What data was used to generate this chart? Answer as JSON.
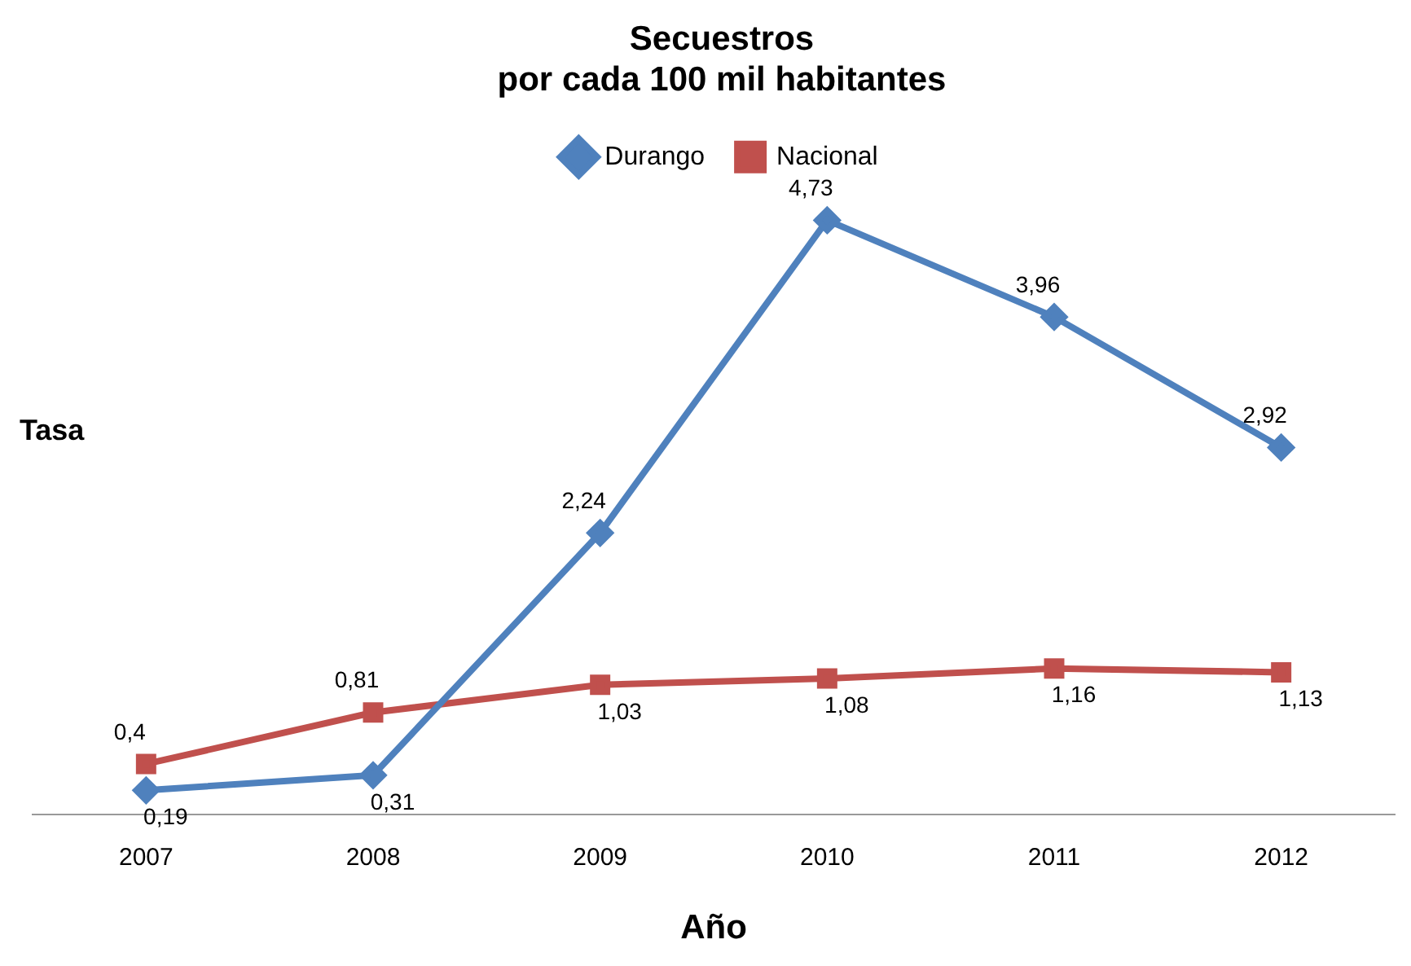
{
  "chart_data": {
    "type": "line",
    "title": "Secuestros\npor cada 100 mil habitantes",
    "xlabel": "Año",
    "ylabel": "Tasa",
    "categories": [
      "2007",
      "2008",
      "2009",
      "2010",
      "2011",
      "2012"
    ],
    "series": [
      {
        "name": "Durango",
        "color": "#4f81bd",
        "marker": "diamond",
        "values": [
          0.19,
          0.31,
          2.24,
          4.73,
          3.96,
          2.92
        ],
        "value_labels": [
          "0,19",
          "0,31",
          "2,24",
          "4,73",
          "3,96",
          "2,92"
        ]
      },
      {
        "name": "Nacional",
        "color": "#c0504d",
        "marker": "square",
        "values": [
          0.4,
          0.81,
          1.03,
          1.08,
          1.16,
          1.13
        ],
        "value_labels": [
          "0,4",
          "0,81",
          "1,03",
          "1,08",
          "1,16",
          "1,13"
        ]
      }
    ],
    "tick_labels": "x",
    "legend": "top",
    "grid": false
  }
}
